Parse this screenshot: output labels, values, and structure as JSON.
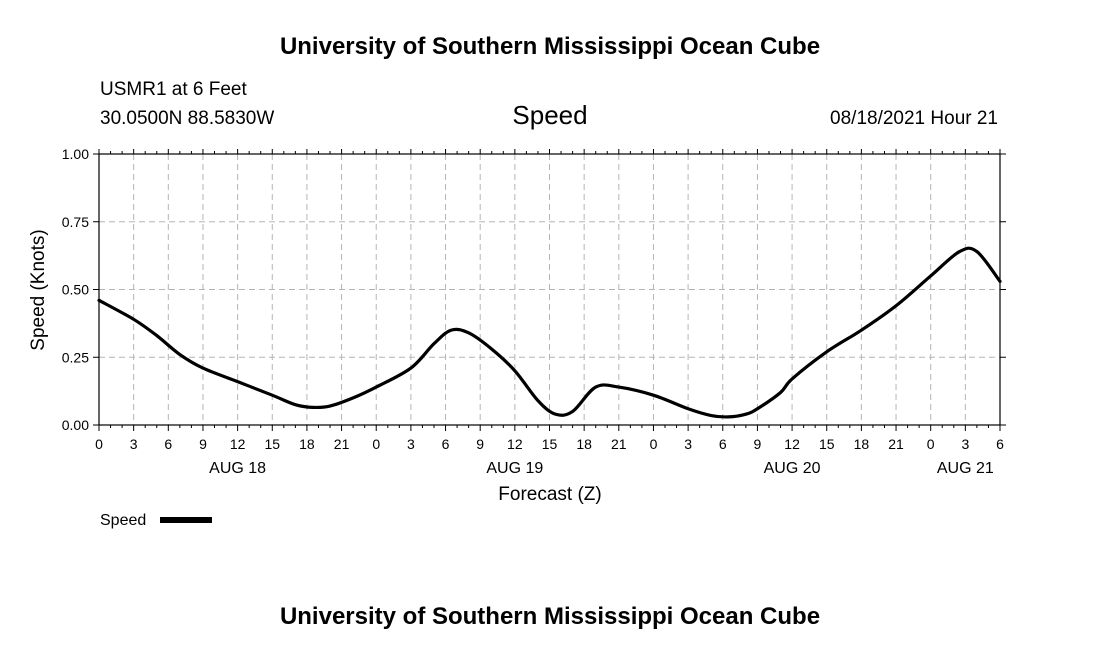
{
  "header": {
    "title": "University of Southern Mississippi Ocean Cube",
    "station": "USMR1 at 6 Feet",
    "coords": "30.0500N  88.5830W",
    "chart_title": "Speed",
    "timestamp": "08/18/2021 Hour 21"
  },
  "legend": {
    "label": "Speed"
  },
  "footer": {
    "title": "University of Southern Mississippi Ocean Cube"
  },
  "chart_data": {
    "type": "line",
    "title": "Speed",
    "xlabel": "Forecast (Z)",
    "ylabel": "Speed (Knots)",
    "ylim": [
      0,
      1
    ],
    "y_ticks": [
      "0.00",
      "0.25",
      "0.50",
      "0.75",
      "1.00"
    ],
    "x_unit": "hours from AUG 18 00Z",
    "xlim": [
      0,
      78
    ],
    "x_tick_labels": [
      "0",
      "3",
      "6",
      "9",
      "12",
      "15",
      "18",
      "21",
      "0",
      "3",
      "6",
      "9",
      "12",
      "15",
      "18",
      "21",
      "0",
      "3",
      "6",
      "9",
      "12",
      "15",
      "18",
      "21",
      "0",
      "3",
      "6"
    ],
    "day_labels": [
      {
        "label": "AUG 18",
        "x": 12
      },
      {
        "label": "AUG 19",
        "x": 36
      },
      {
        "label": "AUG 20",
        "x": 60
      },
      {
        "label": "AUG 21",
        "x": 75
      }
    ],
    "grid": true,
    "legend_position": "bottom-left",
    "series": [
      {
        "name": "Speed",
        "color": "#000000",
        "x": [
          0,
          3,
          5,
          7,
          9,
          12,
          15,
          17,
          18.5,
          20,
          22,
          24,
          27,
          29,
          30.5,
          32,
          34,
          36,
          38,
          39.5,
          41,
          43,
          45,
          48,
          51,
          53,
          54.5,
          56,
          57,
          59,
          60,
          63,
          66,
          69,
          72,
          74.5,
          76,
          78
        ],
        "values": [
          0.46,
          0.39,
          0.33,
          0.26,
          0.21,
          0.16,
          0.11,
          0.075,
          0.065,
          0.07,
          0.1,
          0.14,
          0.21,
          0.3,
          0.35,
          0.34,
          0.28,
          0.2,
          0.09,
          0.04,
          0.05,
          0.14,
          0.14,
          0.11,
          0.06,
          0.035,
          0.03,
          0.04,
          0.06,
          0.12,
          0.17,
          0.27,
          0.35,
          0.44,
          0.55,
          0.64,
          0.64,
          0.53
        ]
      }
    ]
  }
}
